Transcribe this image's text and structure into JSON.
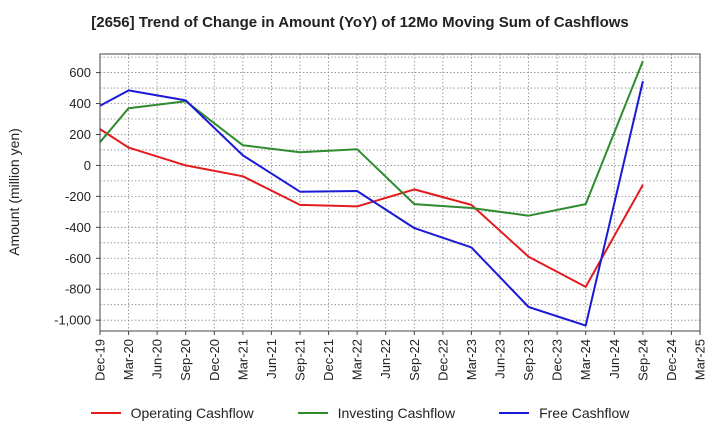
{
  "chart_data": {
    "type": "line",
    "title": "[2656]  Trend of Change in Amount (YoY) of 12Mo Moving Sum of Cashflows",
    "xlabel": "",
    "ylabel": "Amount (million yen)",
    "ylim": [
      -1070,
      720
    ],
    "yticks": [
      -1000,
      -800,
      -600,
      -400,
      -200,
      0,
      200,
      400,
      600
    ],
    "ytick_labels": [
      "-1,000",
      "-800",
      "-600",
      "-400",
      "-200",
      "0",
      "200",
      "400",
      "600"
    ],
    "categories": [
      "Dec-19",
      "Mar-20",
      "Jun-20",
      "Sep-20",
      "Dec-20",
      "Mar-21",
      "Jun-21",
      "Sep-21",
      "Dec-21",
      "Mar-22",
      "Jun-22",
      "Sep-22",
      "Dec-22",
      "Mar-23",
      "Jun-23",
      "Sep-23",
      "Dec-23",
      "Mar-24",
      "Jun-24",
      "Sep-24",
      "Dec-24",
      "Mar-25"
    ],
    "grid": true,
    "legend_position": "bottom",
    "series": [
      {
        "name": "Operating Cashflow",
        "color": "#e41a1c",
        "values": [
          235,
          115,
          null,
          0,
          null,
          -70,
          null,
          -255,
          null,
          -265,
          null,
          -155,
          null,
          -255,
          null,
          -590,
          null,
          -785,
          null,
          -125,
          null,
          null
        ]
      },
      {
        "name": "Investing Cashflow",
        "color": "#2e8b2e",
        "values": [
          150,
          370,
          null,
          415,
          null,
          130,
          null,
          85,
          null,
          105,
          null,
          -250,
          null,
          -275,
          null,
          -325,
          null,
          -250,
          null,
          675,
          null,
          null
        ]
      },
      {
        "name": "Free Cashflow",
        "color": "#1a1ad6",
        "values": [
          385,
          485,
          null,
          420,
          null,
          65,
          null,
          -170,
          null,
          -165,
          null,
          -405,
          null,
          -530,
          null,
          -915,
          null,
          -1035,
          null,
          545,
          null,
          null
        ]
      }
    ]
  },
  "legend": {
    "items": [
      {
        "label": "Operating Cashflow",
        "color": "#e41a1c"
      },
      {
        "label": "Investing Cashflow",
        "color": "#2e8b2e"
      },
      {
        "label": "Free Cashflow",
        "color": "#1a1ad6"
      }
    ]
  }
}
